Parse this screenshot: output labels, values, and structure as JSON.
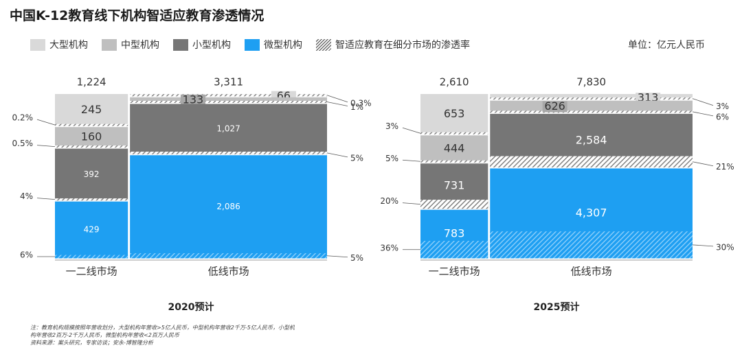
{
  "title": "中国K-12教育线下机构智适应教育渗透情况",
  "unit_label": "单位：亿元人民币",
  "legend": [
    {
      "label": "大型机构",
      "color": "#d9d9d9"
    },
    {
      "label": "中型机构",
      "color": "#bfbfbf"
    },
    {
      "label": "小型机构",
      "color": "#767676"
    },
    {
      "label": "微型机构",
      "color": "#1e9ff2"
    },
    {
      "label": "智适应教育在细分市场的渗透率",
      "pattern": "hatch"
    }
  ],
  "notes": [
    "注：教育机构规模按照年营收划分，大型机构年营收>5亿人民币，中型机构年营收2千万-5亿人民币，小型机",
    "构年营收2百万-2千万人民币，微型机构年营收<2百万人民币",
    "资料来源：案头研究，专家访谈；安永-博智隆分析"
  ],
  "chart_data": [
    {
      "type": "marimekko",
      "title": "2020预计",
      "categories": [
        "一二线市场",
        "低线市场"
      ],
      "totals": [
        "1,224",
        "3,311"
      ],
      "segment_names": [
        "大型机构",
        "中型机构",
        "小型机构",
        "微型机构"
      ],
      "segments": [
        {
          "values": [
            245,
            160,
            392,
            429
          ],
          "labels": [
            "245",
            "160",
            "392",
            "429"
          ],
          "penetration": [
            "0.2%",
            "0.5%",
            "4%",
            "6%"
          ]
        },
        {
          "values": [
            66,
            133,
            1027,
            2086
          ],
          "labels": [
            "66",
            "133",
            "1,027",
            "2,086"
          ],
          "penetration": [
            "0.3%",
            "1%",
            "5%",
            "5%"
          ]
        }
      ]
    },
    {
      "type": "marimekko",
      "title": "2025预计",
      "categories": [
        "一二线市场",
        "低线市场"
      ],
      "totals": [
        "2,610",
        "7,830"
      ],
      "segment_names": [
        "大型机构",
        "中型机构",
        "小型机构",
        "微型机构"
      ],
      "segments": [
        {
          "values": [
            653,
            444,
            731,
            783
          ],
          "labels": [
            "653",
            "444",
            "731",
            "783"
          ],
          "penetration": [
            "3%",
            "5%",
            "20%",
            "36%"
          ]
        },
        {
          "values": [
            313,
            626,
            2584,
            4307
          ],
          "labels": [
            "313",
            "626",
            "2,584",
            "4,307"
          ],
          "penetration": [
            "3%",
            "6%",
            "21%",
            "30%"
          ]
        }
      ]
    }
  ]
}
